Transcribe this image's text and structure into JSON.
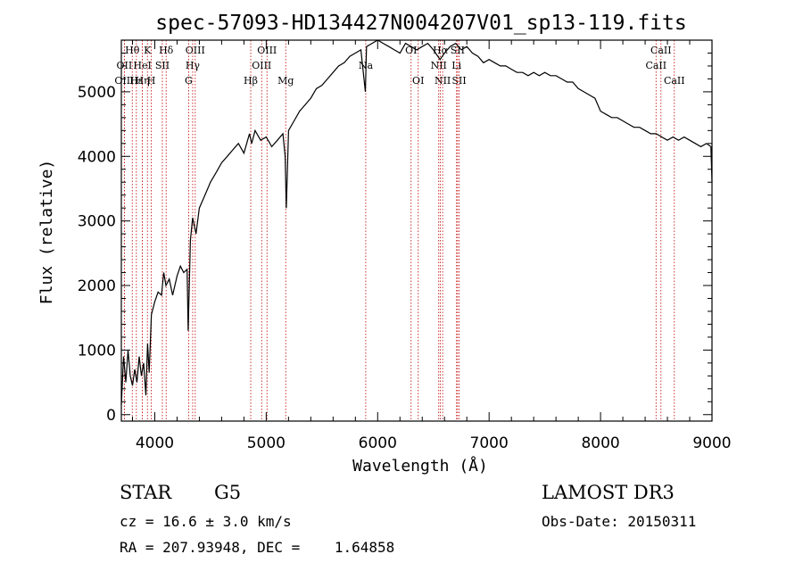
{
  "chart_data": {
    "type": "line",
    "title": "spec-57093-HD134427N004207V01_sp13-119.fits",
    "xlabel": "Wavelength (Å)",
    "ylabel": "Flux (relative)",
    "xlim": [
      3700,
      9000
    ],
    "ylim": [
      -100,
      5800
    ],
    "xticks": [
      4000,
      5000,
      6000,
      7000,
      8000,
      9000
    ],
    "yticks": [
      0,
      1000,
      2000,
      3000,
      4000,
      5000
    ],
    "xtick_labels": [
      "4000",
      "5000",
      "6000",
      "7000",
      "8000",
      "9000"
    ],
    "ytick_labels": [
      "0",
      "1000",
      "2000",
      "3000",
      "4000",
      "5000"
    ],
    "series": [
      {
        "name": "flux",
        "x": [
          3700,
          3720,
          3740,
          3760,
          3780,
          3800,
          3820,
          3840,
          3860,
          3880,
          3900,
          3920,
          3935,
          3950,
          3970,
          4000,
          4030,
          4060,
          4080,
          4100,
          4130,
          4160,
          4200,
          4230,
          4260,
          4290,
          4300,
          4320,
          4340,
          4370,
          4400,
          4450,
          4500,
          4550,
          4600,
          4650,
          4700,
          4750,
          4800,
          4850,
          4870,
          4900,
          4950,
          5000,
          5050,
          5100,
          5150,
          5170,
          5180,
          5200,
          5250,
          5300,
          5350,
          5400,
          5450,
          5500,
          5550,
          5600,
          5650,
          5700,
          5750,
          5800,
          5850,
          5890,
          5900,
          5950,
          6000,
          6050,
          6100,
          6150,
          6200,
          6250,
          6300,
          6350,
          6400,
          6450,
          6500,
          6560,
          6600,
          6650,
          6700,
          6750,
          6800,
          6850,
          6900,
          6950,
          7000,
          7050,
          7100,
          7150,
          7200,
          7250,
          7300,
          7350,
          7400,
          7450,
          7500,
          7550,
          7600,
          7650,
          7700,
          7750,
          7800,
          7850,
          7900,
          7950,
          8000,
          8050,
          8100,
          8150,
          8200,
          8250,
          8300,
          8350,
          8400,
          8450,
          8500,
          8550,
          8600,
          8650,
          8700,
          8750,
          8800,
          8850,
          8900,
          8950,
          8990,
          9000
        ],
        "y": [
          150,
          900,
          500,
          1000,
          600,
          450,
          700,
          500,
          900,
          600,
          800,
          300,
          1100,
          650,
          1550,
          1750,
          1900,
          1850,
          2200,
          2000,
          2100,
          1850,
          2150,
          2300,
          2200,
          2250,
          1300,
          2700,
          3050,
          2800,
          3200,
          3400,
          3600,
          3750,
          3900,
          4000,
          4100,
          4200,
          4050,
          4350,
          4200,
          4400,
          4250,
          4300,
          4150,
          4250,
          4350,
          4000,
          3200,
          4400,
          4550,
          4700,
          4800,
          4900,
          5050,
          5100,
          5200,
          5300,
          5400,
          5450,
          5550,
          5600,
          5650,
          5000,
          5700,
          5750,
          5800,
          5750,
          5700,
          5650,
          5600,
          5750,
          5700,
          5650,
          5700,
          5750,
          5650,
          5500,
          5600,
          5700,
          5750,
          5650,
          5700,
          5600,
          5550,
          5450,
          5500,
          5450,
          5400,
          5400,
          5350,
          5300,
          5300,
          5250,
          5300,
          5250,
          5300,
          5250,
          5250,
          5200,
          5150,
          5150,
          5050,
          5000,
          4950,
          4900,
          4700,
          4650,
          4600,
          4600,
          4550,
          4500,
          4450,
          4450,
          4400,
          4350,
          4350,
          4300,
          4250,
          4300,
          4250,
          4300,
          4250,
          4200,
          4150,
          4200,
          4150,
          3600
        ]
      }
    ],
    "lines": [
      {
        "name": "Hθ",
        "wave": 3798,
        "row": 0
      },
      {
        "name": "OII",
        "wave": 3727,
        "row": 1
      },
      {
        "name": "OIII",
        "wave": 3727,
        "row": 2
      },
      {
        "name": "Hε",
        "wave": 3835,
        "row": 2
      },
      {
        "name": "K",
        "wave": 3934,
        "row": 0
      },
      {
        "name": "HeI",
        "wave": 3889,
        "row": 1
      },
      {
        "name": "Hη",
        "wave": 3889,
        "row": 2
      },
      {
        "name": "Hδ",
        "wave": 4102,
        "row": 0
      },
      {
        "name": "SII",
        "wave": 4068,
        "row": 1
      },
      {
        "name": "H",
        "wave": 3969,
        "row": 2
      },
      {
        "name": "OIII",
        "wave": 4363,
        "row": 0
      },
      {
        "name": "Hγ",
        "wave": 4340,
        "row": 1
      },
      {
        "name": "G",
        "wave": 4304,
        "row": 2
      },
      {
        "name": "OIII",
        "wave": 5007,
        "row": 0
      },
      {
        "name": "OIII",
        "wave": 4959,
        "row": 1
      },
      {
        "name": "Hβ",
        "wave": 4861,
        "row": 2
      },
      {
        "name": "Mg",
        "wave": 5175,
        "row": 2
      },
      {
        "name": "Na",
        "wave": 5893,
        "row": 1
      },
      {
        "name": "OI",
        "wave": 6300,
        "row": 0
      },
      {
        "name": "OI",
        "wave": 6364,
        "row": 2
      },
      {
        "name": "NII",
        "wave": 6548,
        "row": 1
      },
      {
        "name": "NII",
        "wave": 6583,
        "row": 2
      },
      {
        "name": "Hα",
        "wave": 6563,
        "row": 0
      },
      {
        "name": "SII",
        "wave": 6731,
        "row": 2
      },
      {
        "name": "Li",
        "wave": 6708,
        "row": 1
      },
      {
        "name": "SII",
        "wave": 6717,
        "row": 0
      },
      {
        "name": "CaII",
        "wave": 8542,
        "row": 0
      },
      {
        "name": "CaII",
        "wave": 8498,
        "row": 1
      },
      {
        "name": "CaII",
        "wave": 8662,
        "row": 2
      }
    ]
  },
  "info": {
    "class": "STAR",
    "subclass": "G5",
    "survey": "LAMOST DR3",
    "cz": "cz = 16.6 ± 3.0 km/s",
    "obs_date": "Obs-Date: 20150311",
    "radec": "RA = 207.93948, DEC =    1.64858"
  }
}
